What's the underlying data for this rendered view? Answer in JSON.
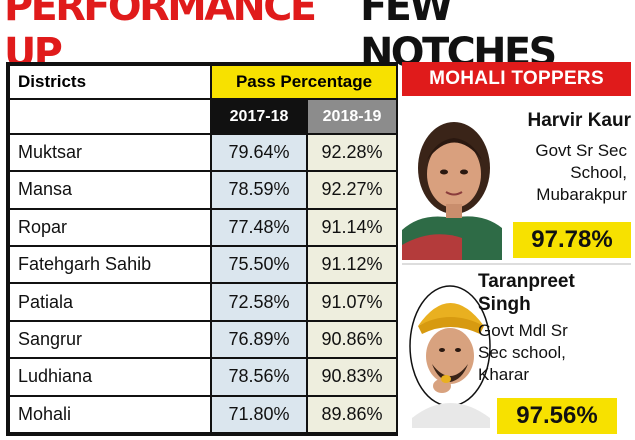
{
  "headline": {
    "part1": "PERFORMANCE UP",
    "part2": "FEW NOTCHES",
    "colors": {
      "part1": "#e01b1b",
      "part2": "#111111"
    }
  },
  "table": {
    "col_districts": "Districts",
    "col_pass": "Pass Percentage",
    "year1": "2017-18",
    "year2": "2018-19",
    "rows": [
      {
        "district": "Muktsar",
        "y1": "79.64%",
        "y2": "92.28%"
      },
      {
        "district": "Mansa",
        "y1": "78.59%",
        "y2": "92.27%"
      },
      {
        "district": "Ropar",
        "y1": "77.48%",
        "y2": "91.14%"
      },
      {
        "district": "Fatehgarh Sahib",
        "y1": "75.50%",
        "y2": "91.12%"
      },
      {
        "district": "Patiala",
        "y1": "72.58%",
        "y2": "91.07%"
      },
      {
        "district": "Sangrur",
        "y1": "76.89%",
        "y2": "90.86%"
      },
      {
        "district": "Ludhiana",
        "y1": "78.56%",
        "y2": "90.83%"
      },
      {
        "district": "Mohali",
        "y1": "71.80%",
        "y2": "89.86%"
      }
    ]
  },
  "toppers": {
    "title": "MOHALI TOPPERS",
    "list": [
      {
        "name": "Harvir Kaur",
        "school_lines": [
          "Govt Sr Sec",
          "School,",
          "Mubarakpur"
        ],
        "percent": "97.78%"
      },
      {
        "name_lines": [
          "Taranpreet",
          "Singh"
        ],
        "school_lines": [
          "Govt Mdl Sr",
          "Sec school,",
          "Kharar"
        ],
        "percent": "97.56%"
      }
    ]
  }
}
